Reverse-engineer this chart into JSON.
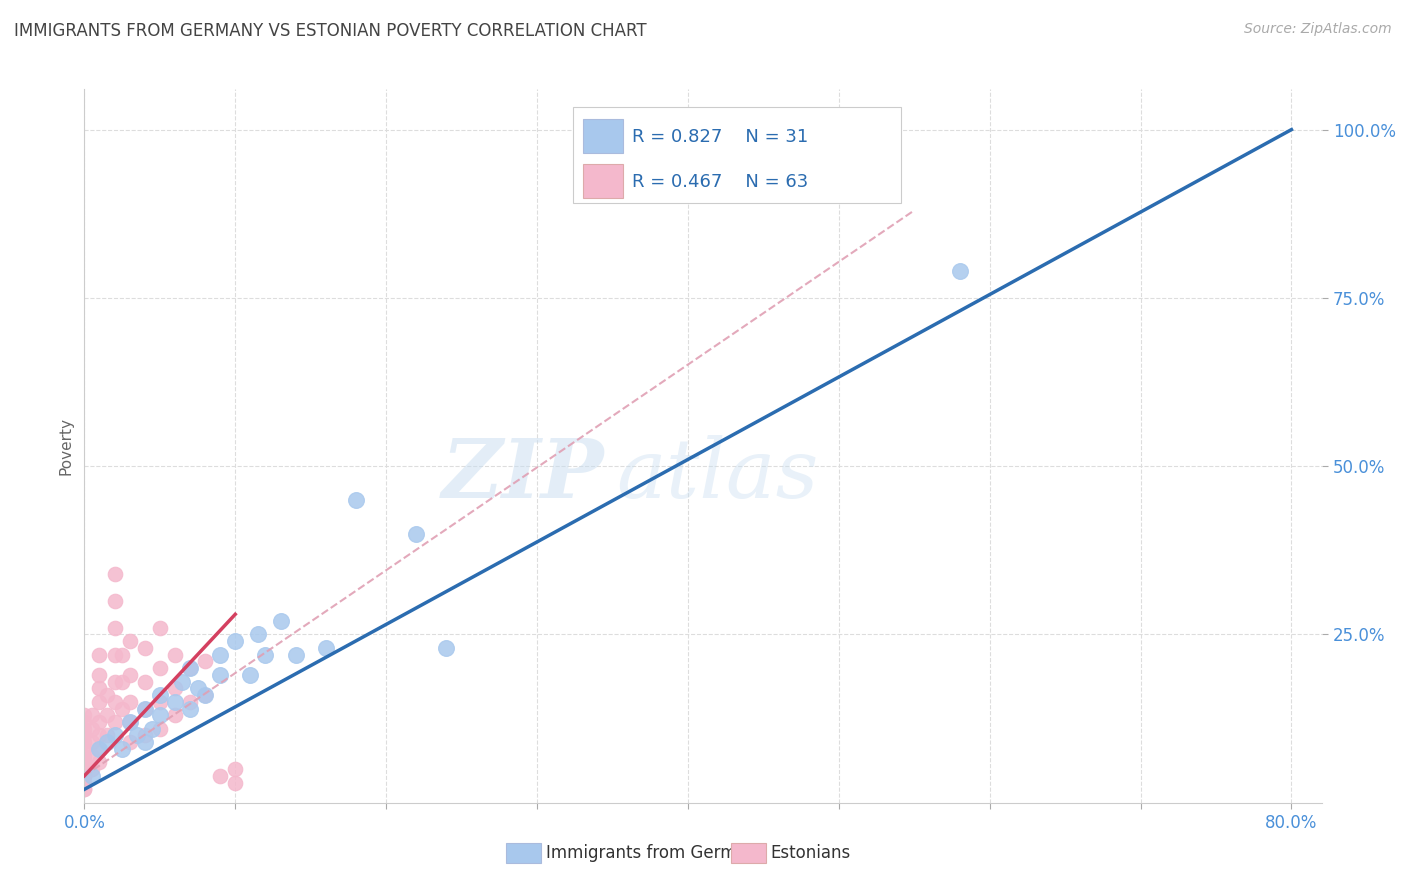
{
  "title": "IMMIGRANTS FROM GERMANY VS ESTONIAN POVERTY CORRELATION CHART",
  "source": "Source: ZipAtlas.com",
  "ylabel": "Poverty",
  "legend_blue_r": "R = 0.827",
  "legend_blue_n": "N = 31",
  "legend_pink_r": "R = 0.467",
  "legend_pink_n": "N = 63",
  "legend_label_blue": "Immigrants from Germany",
  "legend_label_pink": "Estonians",
  "watermark_zip": "ZIP",
  "watermark_atlas": "atlas",
  "bg_color": "#ffffff",
  "title_color": "#444444",
  "source_color": "#aaaaaa",
  "axis_tick_color": "#4a90d9",
  "ylabel_color": "#666666",
  "grid_color": "#dddddd",
  "blue_dot_color": "#a8c8ed",
  "pink_dot_color": "#f4b8cc",
  "blue_line_color": "#2b6cb0",
  "pink_line_color": "#d44060",
  "dashed_line_color": "#e0a0b4",
  "legend_text_color": "#2b6cb0",
  "legend_border_color": "#cccccc",
  "blue_dots": [
    [
      0.005,
      0.04
    ],
    [
      0.01,
      0.08
    ],
    [
      0.015,
      0.09
    ],
    [
      0.02,
      0.1
    ],
    [
      0.025,
      0.08
    ],
    [
      0.03,
      0.12
    ],
    [
      0.035,
      0.1
    ],
    [
      0.04,
      0.14
    ],
    [
      0.04,
      0.09
    ],
    [
      0.045,
      0.11
    ],
    [
      0.05,
      0.16
    ],
    [
      0.05,
      0.13
    ],
    [
      0.06,
      0.15
    ],
    [
      0.065,
      0.18
    ],
    [
      0.07,
      0.2
    ],
    [
      0.07,
      0.14
    ],
    [
      0.075,
      0.17
    ],
    [
      0.08,
      0.16
    ],
    [
      0.09,
      0.22
    ],
    [
      0.09,
      0.19
    ],
    [
      0.1,
      0.24
    ],
    [
      0.11,
      0.19
    ],
    [
      0.115,
      0.25
    ],
    [
      0.12,
      0.22
    ],
    [
      0.13,
      0.27
    ],
    [
      0.14,
      0.22
    ],
    [
      0.16,
      0.23
    ],
    [
      0.18,
      0.45
    ],
    [
      0.22,
      0.4
    ],
    [
      0.24,
      0.23
    ],
    [
      0.58,
      0.79
    ]
  ],
  "pink_dots": [
    [
      0.0,
      0.02
    ],
    [
      0.0,
      0.03
    ],
    [
      0.0,
      0.04
    ],
    [
      0.0,
      0.05
    ],
    [
      0.0,
      0.06
    ],
    [
      0.0,
      0.07
    ],
    [
      0.0,
      0.08
    ],
    [
      0.0,
      0.09
    ],
    [
      0.0,
      0.1
    ],
    [
      0.0,
      0.11
    ],
    [
      0.0,
      0.12
    ],
    [
      0.0,
      0.13
    ],
    [
      0.0,
      0.02
    ],
    [
      0.0,
      0.04
    ],
    [
      0.005,
      0.05
    ],
    [
      0.005,
      0.07
    ],
    [
      0.005,
      0.09
    ],
    [
      0.005,
      0.11
    ],
    [
      0.005,
      0.13
    ],
    [
      0.01,
      0.06
    ],
    [
      0.01,
      0.08
    ],
    [
      0.01,
      0.1
    ],
    [
      0.01,
      0.12
    ],
    [
      0.01,
      0.15
    ],
    [
      0.01,
      0.17
    ],
    [
      0.01,
      0.19
    ],
    [
      0.01,
      0.22
    ],
    [
      0.015,
      0.1
    ],
    [
      0.015,
      0.13
    ],
    [
      0.015,
      0.16
    ],
    [
      0.02,
      0.12
    ],
    [
      0.02,
      0.15
    ],
    [
      0.02,
      0.18
    ],
    [
      0.02,
      0.22
    ],
    [
      0.02,
      0.26
    ],
    [
      0.02,
      0.3
    ],
    [
      0.02,
      0.34
    ],
    [
      0.025,
      0.14
    ],
    [
      0.025,
      0.18
    ],
    [
      0.025,
      0.22
    ],
    [
      0.03,
      0.09
    ],
    [
      0.03,
      0.12
    ],
    [
      0.03,
      0.15
    ],
    [
      0.03,
      0.19
    ],
    [
      0.03,
      0.24
    ],
    [
      0.04,
      0.1
    ],
    [
      0.04,
      0.14
    ],
    [
      0.04,
      0.18
    ],
    [
      0.04,
      0.23
    ],
    [
      0.05,
      0.11
    ],
    [
      0.05,
      0.15
    ],
    [
      0.05,
      0.2
    ],
    [
      0.05,
      0.26
    ],
    [
      0.06,
      0.13
    ],
    [
      0.06,
      0.17
    ],
    [
      0.06,
      0.22
    ],
    [
      0.07,
      0.15
    ],
    [
      0.07,
      0.2
    ],
    [
      0.08,
      0.16
    ],
    [
      0.08,
      0.21
    ],
    [
      0.09,
      0.04
    ],
    [
      0.1,
      0.05
    ],
    [
      0.1,
      0.03
    ]
  ],
  "xmin": 0.0,
  "xmax": 0.82,
  "ymin": 0.0,
  "ymax": 1.06,
  "blue_line_x": [
    0.0,
    0.8
  ],
  "blue_line_y": [
    0.02,
    1.0
  ],
  "pink_line_x": [
    0.0,
    0.1
  ],
  "pink_line_y": [
    0.04,
    0.28
  ],
  "dashed_line_x": [
    0.0,
    0.55
  ],
  "dashed_line_y": [
    0.04,
    0.88
  ]
}
